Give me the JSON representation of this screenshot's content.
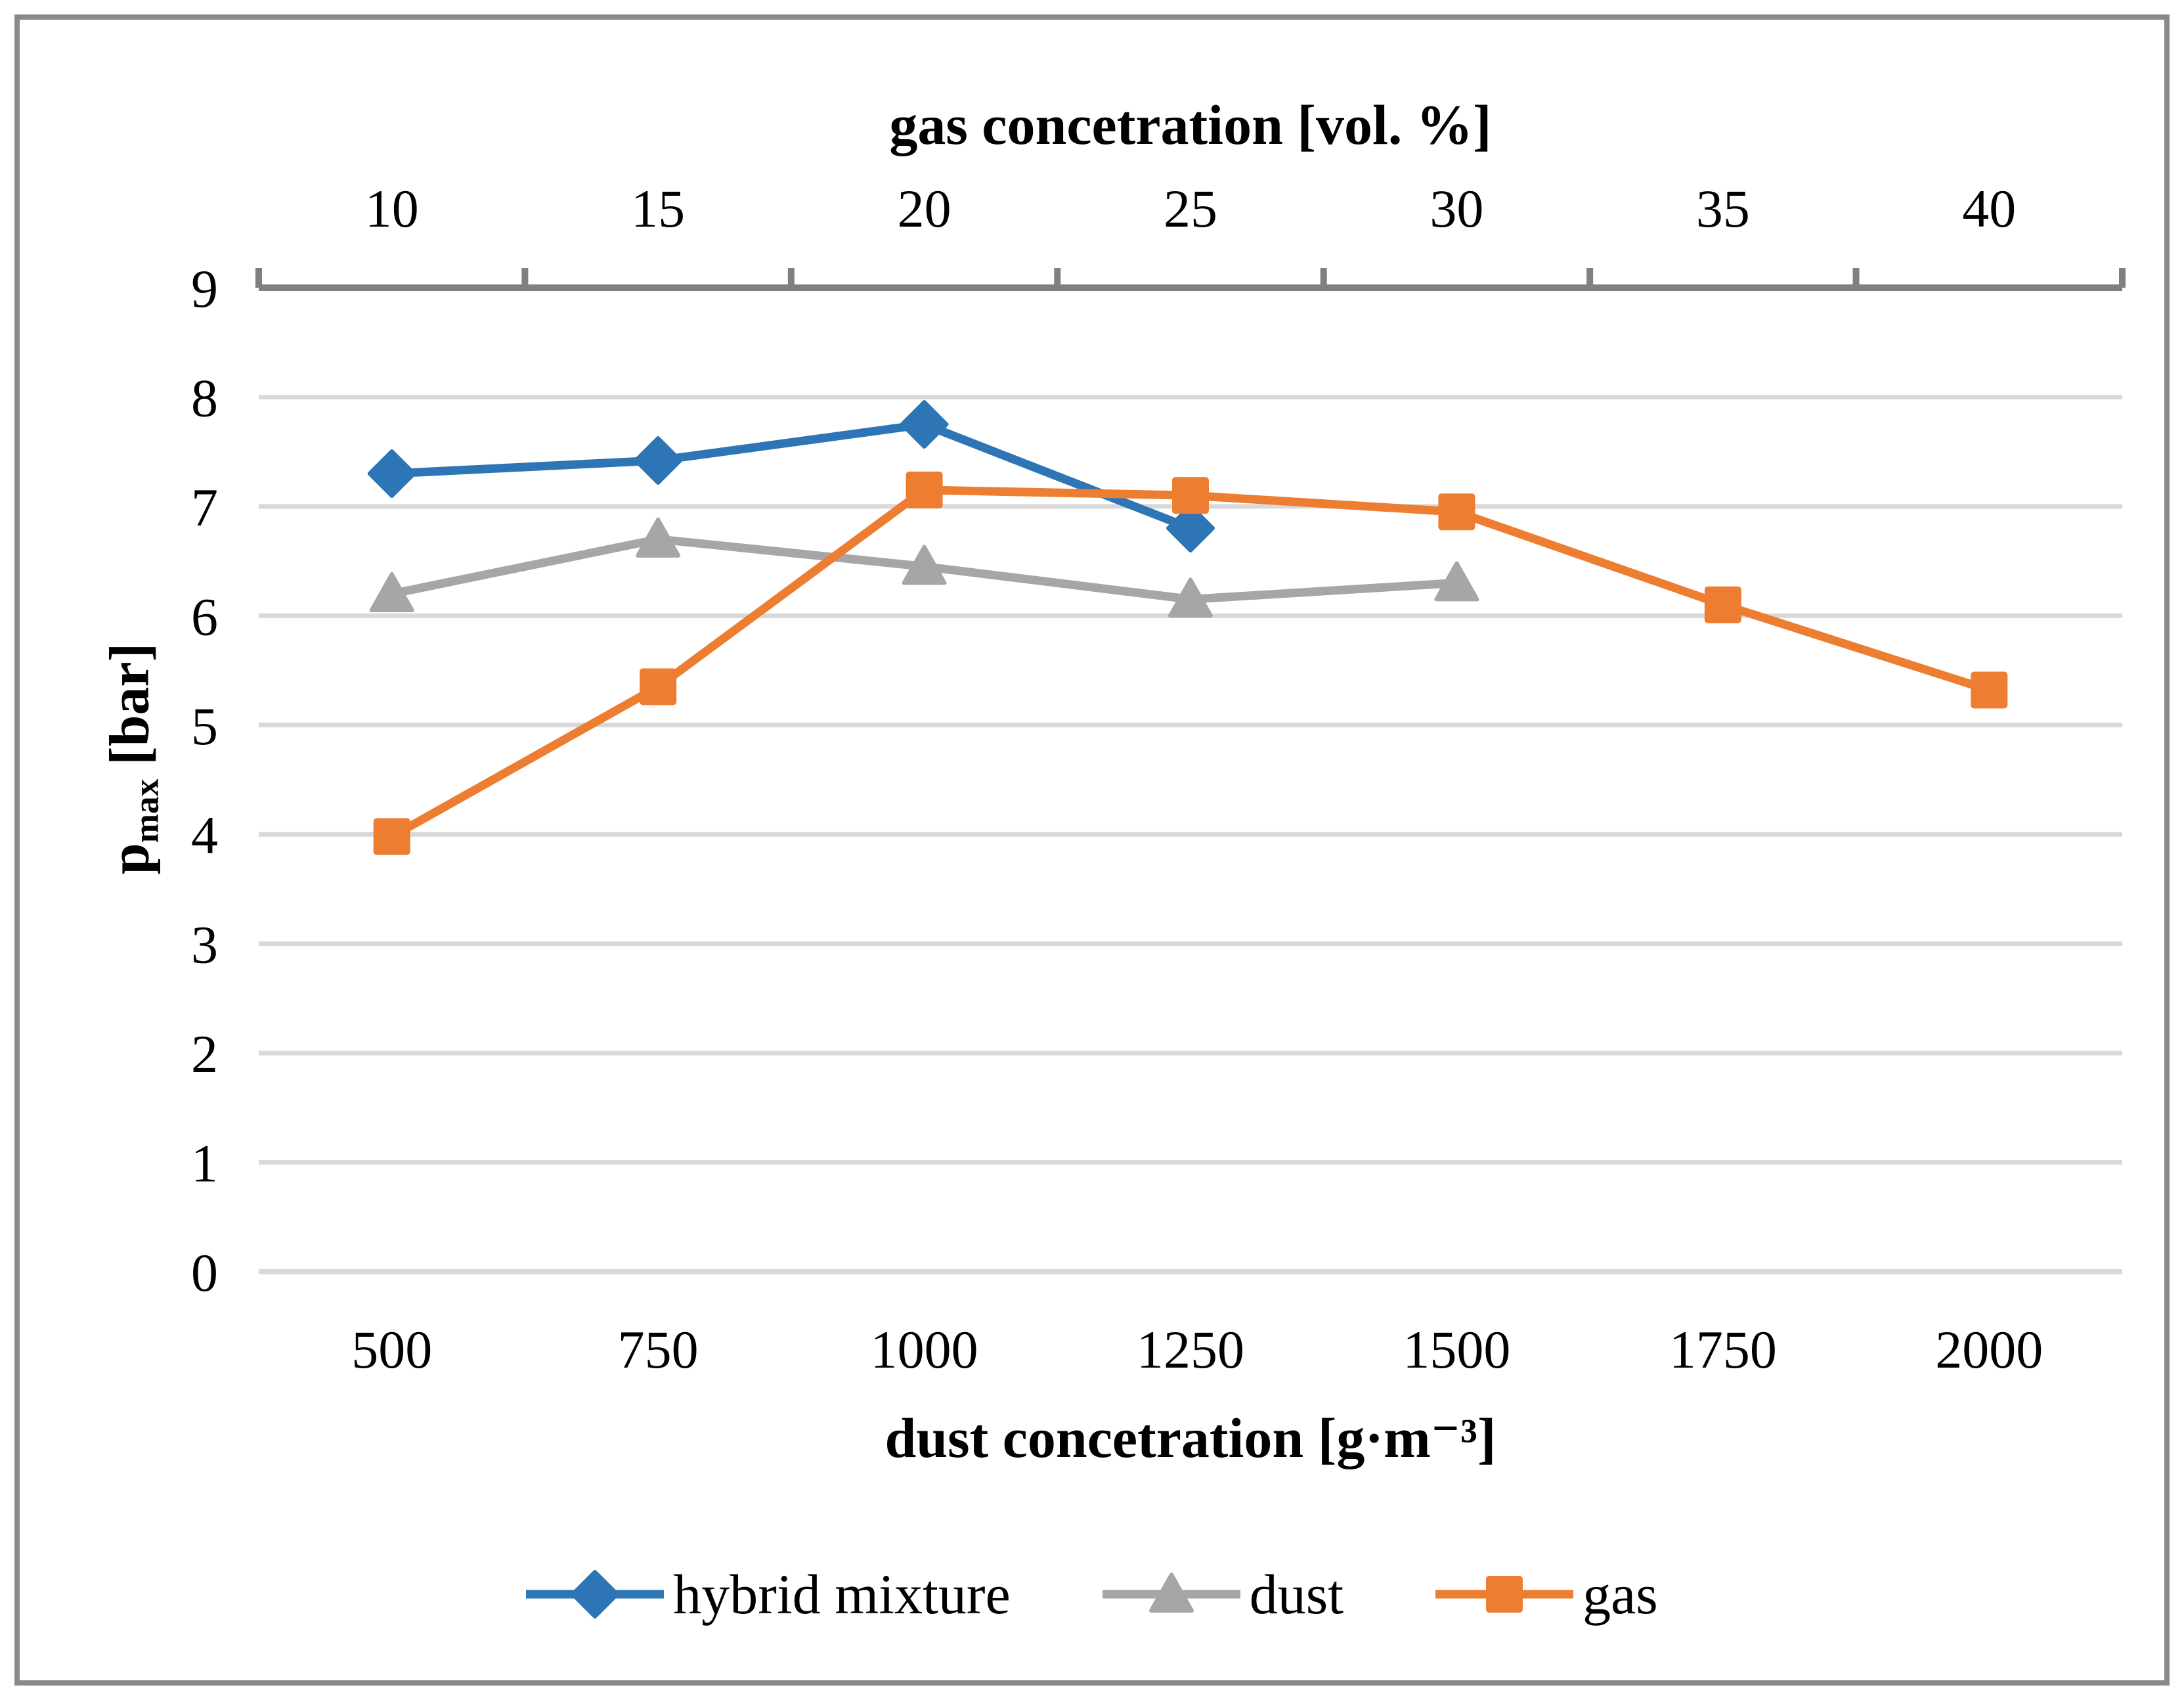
{
  "figure": {
    "background": "#FFFFFF",
    "border_color": "#898989"
  },
  "chart_data": {
    "type": "line",
    "top_axis": {
      "label": "gas concetration [vol. %]",
      "tick_labels": [
        "10",
        "15",
        "20",
        "25",
        "30",
        "35",
        "40"
      ],
      "axis_color": "#808080"
    },
    "bottom_axis": {
      "label": "dust concetration [g·m⁻³]",
      "tick_labels": [
        "500",
        "750",
        "1000",
        "1250",
        "1500",
        "1750",
        "2000"
      ]
    },
    "y_axis": {
      "label_main": "p",
      "label_sub": "max",
      "label_unit": "[bar]",
      "tick_labels": [
        "0",
        "1",
        "2",
        "3",
        "4",
        "5",
        "6",
        "7",
        "8",
        "9"
      ],
      "min": 0,
      "max": 9,
      "step": 1
    },
    "categories": [
      500,
      750,
      1000,
      1250,
      1500,
      1750,
      2000
    ],
    "series": [
      {
        "name": "hybrid mixture",
        "marker": "diamond",
        "color": "#2E75B6",
        "values": [
          7.3,
          7.42,
          7.75,
          6.8,
          null,
          null,
          null
        ]
      },
      {
        "name": "dust",
        "marker": "triangle",
        "color": "#A6A6A6",
        "values": [
          6.2,
          6.7,
          6.45,
          6.15,
          6.3,
          null,
          null
        ]
      },
      {
        "name": "gas",
        "marker": "square",
        "color": "#ED7D31",
        "values": [
          3.98,
          5.35,
          7.15,
          7.1,
          6.95,
          6.1,
          5.32
        ]
      }
    ],
    "grid": {
      "color": "#D9D9D9",
      "horizontal": true
    },
    "legend": {
      "position": "bottom"
    }
  }
}
